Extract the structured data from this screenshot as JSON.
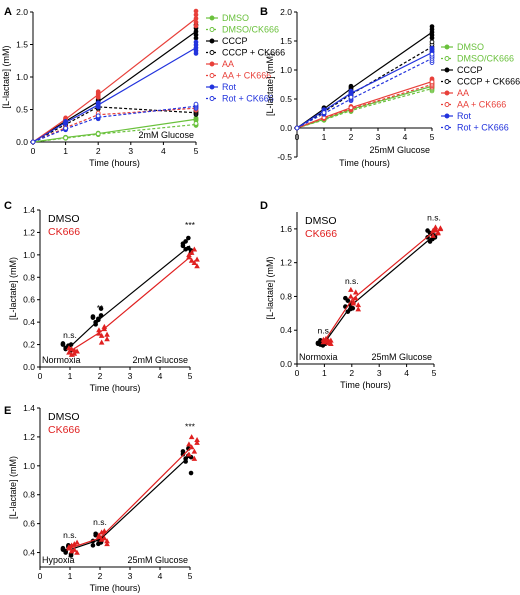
{
  "colors": {
    "DMSO": "#000000",
    "CK666": "#e02020",
    "green": "#6ac13c",
    "red": "#e8403a",
    "blue": "#2233dd"
  },
  "chart_data": [
    {
      "panel": "A",
      "type": "line",
      "title": "",
      "xlabel": "Time (hours)",
      "ylabel": "[L-lactate] (mM)",
      "xlim": [
        0,
        5
      ],
      "ylim": [
        0,
        2.0
      ],
      "xticks": [
        "0",
        "1",
        "2",
        "3",
        "4",
        "5"
      ],
      "yticks": [
        "0.0",
        "0.5",
        "1.0",
        "1.5",
        "2.0"
      ],
      "annotation": "2mM Glucose",
      "x": [
        0,
        1,
        2,
        5
      ],
      "legend_position": "right",
      "series": [
        {
          "name": "DMSO",
          "color": "#6ac13c",
          "dashed": false,
          "filled": true,
          "values": [
            0,
            0.07,
            0.13,
            0.35
          ]
        },
        {
          "name": "DMSO/CK666",
          "color": "#6ac13c",
          "dashed": true,
          "filled": false,
          "values": [
            0,
            0.06,
            0.12,
            0.27
          ]
        },
        {
          "name": "CCCP",
          "color": "#000000",
          "dashed": false,
          "filled": true,
          "values": [
            0,
            0.32,
            0.62,
            1.7
          ]
        },
        {
          "name": "CCCP + CK666",
          "color": "#000000",
          "dashed": true,
          "filled": false,
          "values": [
            0,
            0.27,
            0.54,
            0.45
          ]
        },
        {
          "name": "AA",
          "color": "#e8403a",
          "dashed": false,
          "filled": true,
          "values": [
            0,
            0.35,
            0.73,
            1.9
          ]
        },
        {
          "name": "AA + CK666",
          "color": "#e8403a",
          "dashed": true,
          "filled": false,
          "values": [
            0,
            0.22,
            0.42,
            0.52
          ]
        },
        {
          "name": "Rot",
          "color": "#2233dd",
          "dashed": false,
          "filled": true,
          "values": [
            0,
            0.3,
            0.57,
            1.45
          ]
        },
        {
          "name": "Rot + CK666",
          "color": "#2233dd",
          "dashed": true,
          "filled": false,
          "values": [
            0,
            0.2,
            0.38,
            0.55
          ]
        }
      ]
    },
    {
      "panel": "B",
      "type": "line",
      "title": "",
      "xlabel": "Time (hours)",
      "ylabel": "[L-lactate] (mM)",
      "xlim": [
        0,
        5
      ],
      "ylim": [
        -0.5,
        2.0
      ],
      "xticks": [
        "0",
        "1",
        "2",
        "3",
        "4",
        "5"
      ],
      "yticks": [
        "-0.5",
        "0.0",
        "0.5",
        "1.0",
        "1.5",
        "2.0"
      ],
      "annotation": "25mM Glucose",
      "x": [
        0,
        1,
        2,
        5
      ],
      "legend_position": "right",
      "series": [
        {
          "name": "DMSO",
          "color": "#6ac13c",
          "dashed": false,
          "filled": true,
          "values": [
            0,
            0.15,
            0.32,
            0.72
          ]
        },
        {
          "name": "DMSO/CK666",
          "color": "#6ac13c",
          "dashed": true,
          "filled": false,
          "values": [
            0,
            0.14,
            0.3,
            0.68
          ]
        },
        {
          "name": "CCCP",
          "color": "#000000",
          "dashed": false,
          "filled": true,
          "values": [
            0,
            0.33,
            0.68,
            1.65
          ]
        },
        {
          "name": "CCCP + CK666",
          "color": "#000000",
          "dashed": true,
          "filled": false,
          "values": [
            0,
            0.28,
            0.58,
            1.4
          ]
        },
        {
          "name": "AA",
          "color": "#e8403a",
          "dashed": false,
          "filled": true,
          "values": [
            0,
            0.18,
            0.35,
            0.8
          ]
        },
        {
          "name": "AA + CK666",
          "color": "#e8403a",
          "dashed": true,
          "filled": false,
          "values": [
            0,
            0.17,
            0.33,
            0.75
          ]
        },
        {
          "name": "Rot",
          "color": "#2233dd",
          "dashed": false,
          "filled": true,
          "values": [
            0,
            0.3,
            0.6,
            1.3
          ]
        },
        {
          "name": "Rot + CK666",
          "color": "#2233dd",
          "dashed": true,
          "filled": false,
          "values": [
            0,
            0.25,
            0.5,
            1.2
          ]
        }
      ]
    },
    {
      "panel": "C",
      "type": "scatter",
      "title": "",
      "xlabel": "Time (hours)",
      "ylabel": "[L-lactate] (mM)",
      "xlim": [
        0,
        5
      ],
      "ylim": [
        0,
        1.4
      ],
      "xticks": [
        "0",
        "1",
        "2",
        "3",
        "4",
        "5"
      ],
      "yticks": [
        "0.0",
        "0.2",
        "0.4",
        "0.6",
        "0.8",
        "1.0",
        "1.2",
        "1.4"
      ],
      "condition": "Normoxia",
      "annotation": "2mM Glucose",
      "significance": [
        {
          "x": 1,
          "y": 0.26,
          "label": "n.s."
        },
        {
          "x": 2,
          "y": 0.5,
          "label": "**"
        },
        {
          "x": 5,
          "y": 1.24,
          "label": "***"
        }
      ],
      "legend": [
        "DMSO",
        "CK666"
      ],
      "legend_position": "top-left",
      "series": [
        {
          "name": "DMSO",
          "color": "#000000",
          "marker": "circle",
          "x": [
            1,
            2,
            5
          ],
          "mean": [
            0.18,
            0.43,
            1.08
          ],
          "points": [
            [
              0.2,
              0.17,
              0.19,
              0.15,
              0.21,
              0.16,
              0.18,
              0.2
            ],
            [
              0.45,
              0.4,
              0.42,
              0.52,
              0.44,
              0.38,
              0.43,
              0.46
            ],
            [
              1.1,
              1.05,
              1.15,
              1.02,
              1.08,
              1.12,
              1.06,
              1.04
            ]
          ]
        },
        {
          "name": "CK666",
          "color": "#e02020",
          "marker": "triangle",
          "x": [
            1,
            2,
            5
          ],
          "mean": [
            0.14,
            0.31,
            0.98
          ],
          "points": [
            [
              0.13,
              0.16,
              0.12,
              0.14,
              0.17,
              0.11,
              0.15,
              0.14
            ],
            [
              0.33,
              0.28,
              0.36,
              0.25,
              0.3,
              0.22,
              0.34,
              0.29
            ],
            [
              1.0,
              0.95,
              1.05,
              0.9,
              0.98,
              1.02,
              0.93,
              0.96
            ]
          ]
        }
      ]
    },
    {
      "panel": "D",
      "type": "scatter",
      "title": "",
      "xlabel": "Time (hours)",
      "ylabel": "[L-lactate] (mM)",
      "xlim": [
        0,
        5
      ],
      "ylim": [
        0,
        1.8
      ],
      "xticks": [
        "0",
        "1",
        "2",
        "3",
        "4",
        "5"
      ],
      "yticks": [
        "0.0",
        "0.4",
        "0.8",
        "1.2",
        "1.6"
      ],
      "condition": "Normoxia",
      "annotation": "25mM Glucose",
      "significance": [
        {
          "x": 1,
          "y": 0.36,
          "label": "n.s."
        },
        {
          "x": 2,
          "y": 0.95,
          "label": "n.s."
        },
        {
          "x": 5,
          "y": 1.7,
          "label": "n.s."
        }
      ],
      "legend": [
        "DMSO",
        "CK666"
      ],
      "legend_position": "top-left",
      "series": [
        {
          "name": "DMSO",
          "color": "#000000",
          "marker": "circle",
          "x": [
            1,
            2,
            5
          ],
          "mean": [
            0.25,
            0.7,
            1.52
          ],
          "points": [
            [
              0.24,
              0.28,
              0.22,
              0.26,
              0.25,
              0.23,
              0.27,
              0.24
            ],
            [
              0.68,
              0.75,
              0.65,
              0.72,
              0.78,
              0.62,
              0.7,
              0.66
            ],
            [
              1.5,
              1.55,
              1.48,
              1.52,
              1.58,
              1.45,
              1.53,
              1.5
            ]
          ]
        },
        {
          "name": "CK666",
          "color": "#e02020",
          "marker": "triangle",
          "x": [
            1,
            2,
            5
          ],
          "mean": [
            0.27,
            0.76,
            1.57
          ],
          "points": [
            [
              0.26,
              0.3,
              0.28,
              0.24,
              0.29,
              0.27,
              0.25,
              0.28
            ],
            [
              0.8,
              0.72,
              0.85,
              0.7,
              0.88,
              0.74,
              0.78,
              0.65
            ],
            [
              1.58,
              1.62,
              1.55,
              1.6,
              1.52,
              1.59,
              1.56,
              1.61
            ]
          ]
        }
      ]
    },
    {
      "panel": "E",
      "type": "scatter",
      "title": "",
      "xlabel": "Time (hours)",
      "ylabel": "[L-lactate] (mM)",
      "xlim": [
        0,
        5
      ],
      "ylim": [
        0.3,
        1.4
      ],
      "xticks": [
        "0",
        "1",
        "2",
        "3",
        "4",
        "5"
      ],
      "yticks": [
        "0.4",
        "0.6",
        "0.8",
        "1.0",
        "1.2",
        "1.4"
      ],
      "condition": "Hypoxia",
      "annotation": "25mM Glucose",
      "significance": [
        {
          "x": 1,
          "y": 0.5,
          "label": "n.s."
        },
        {
          "x": 2,
          "y": 0.59,
          "label": "n.s."
        },
        {
          "x": 5,
          "y": 1.25,
          "label": "***"
        }
      ],
      "legend": [
        "DMSO",
        "CK666"
      ],
      "legend_position": "top-left",
      "series": [
        {
          "name": "DMSO",
          "color": "#000000",
          "marker": "circle",
          "x": [
            1,
            2,
            5
          ],
          "mean": [
            0.42,
            0.49,
            1.07
          ],
          "points": [
            [
              0.42,
              0.4,
              0.44,
              0.38,
              0.43,
              0.41,
              0.45,
              0.39
            ],
            [
              0.48,
              0.52,
              0.46,
              0.5,
              0.45,
              0.53,
              0.49,
              0.47
            ],
            [
              1.08,
              1.05,
              1.12,
              0.95,
              1.1,
              1.03,
              1.07,
              1.06
            ]
          ]
        },
        {
          "name": "CK666",
          "color": "#e02020",
          "marker": "triangle",
          "x": [
            1,
            2,
            5
          ],
          "mean": [
            0.43,
            0.5,
            1.12
          ],
          "points": [
            [
              0.44,
              0.41,
              0.46,
              0.4,
              0.43,
              0.45,
              0.42,
              0.47
            ],
            [
              0.52,
              0.49,
              0.55,
              0.48,
              0.51,
              0.54,
              0.5,
              0.46
            ],
            [
              1.15,
              1.2,
              1.1,
              1.18,
              1.08,
              1.13,
              1.05,
              1.16
            ]
          ]
        }
      ]
    }
  ]
}
